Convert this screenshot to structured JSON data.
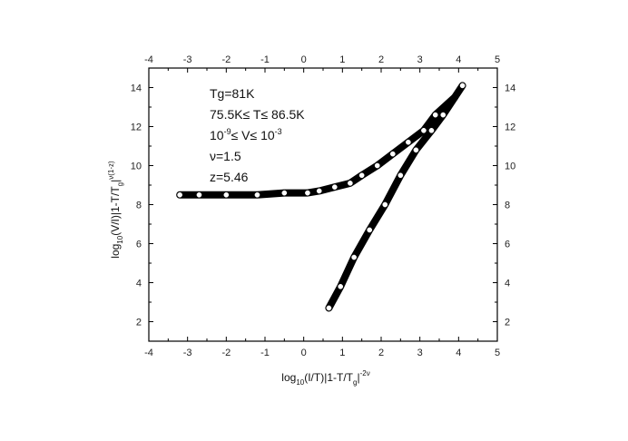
{
  "chart_data": {
    "type": "scatter",
    "xlim": [
      -4,
      5
    ],
    "ylim": [
      1,
      15
    ],
    "x_ticks": [
      -4,
      -3,
      -2,
      -1,
      0,
      1,
      2,
      3,
      4,
      5
    ],
    "y_ticks": [
      2,
      4,
      6,
      8,
      10,
      12,
      14
    ],
    "grid": false,
    "xlabel": {
      "pre": "log",
      "sub": "10",
      "mid": "(I/T)|1-T/T",
      "sub2": "g",
      "post": "|",
      "sup": "-2ν"
    },
    "ylabel": {
      "pre": "log",
      "sub": "10",
      "mid": "(V/I)|1-T/T",
      "sub2": "g",
      "post": "|",
      "sup": "ν(1-z)"
    },
    "annotations": [
      {
        "text": "Tg=81K"
      },
      {
        "text": "75.5K≤  T≤  86.5K"
      },
      {
        "pre": "10",
        "sup": "-9",
        "mid": "≤  V≤  10",
        "sup2": "-3"
      },
      {
        "text": "ν=1.5"
      },
      {
        "text": "z=5.46"
      }
    ],
    "series": [
      {
        "marker": "open-circle",
        "x": [
          -3.2,
          -2.7,
          -2.0,
          -1.2,
          -0.5,
          0.1,
          0.4,
          0.8,
          1.2,
          1.5,
          1.9,
          2.3,
          2.7,
          3.1,
          3.4,
          3.9
        ],
        "y": [
          8.5,
          8.5,
          8.5,
          8.5,
          8.6,
          8.6,
          8.7,
          8.9,
          9.1,
          9.5,
          10.0,
          10.6,
          11.2,
          11.8,
          12.6,
          13.5
        ]
      },
      {
        "marker": "open-circle",
        "x": [
          0.65,
          0.95,
          1.3,
          1.7,
          2.1,
          2.5,
          2.9,
          3.3,
          3.6,
          4.1
        ],
        "y": [
          2.7,
          3.8,
          5.3,
          6.7,
          8.0,
          9.5,
          10.8,
          11.8,
          12.6,
          14.1
        ]
      }
    ]
  }
}
